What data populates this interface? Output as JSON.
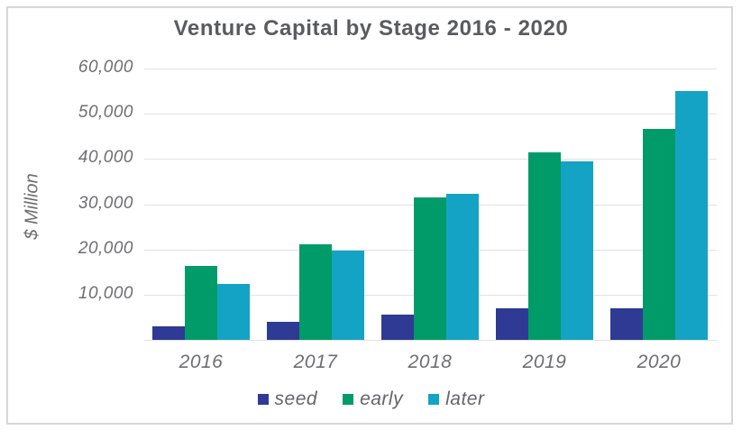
{
  "title": "Venture Capital by Stage 2016 - 2020",
  "y_axis": {
    "label": "$ Million",
    "ticks": [
      "60,000",
      "50,000",
      "40,000",
      "30,000",
      "20,000",
      "10,000"
    ]
  },
  "x_axis": {
    "ticks": [
      "2016",
      "2017",
      "2018",
      "2019",
      "2020"
    ]
  },
  "legend": {
    "items": [
      {
        "label": "seed",
        "color": "#2e3a94"
      },
      {
        "label": "early",
        "color": "#009b68"
      },
      {
        "label": "later",
        "color": "#14a3c4"
      }
    ]
  },
  "colors": {
    "seed": "#2e3a94",
    "early": "#009b68",
    "later": "#14a3c4",
    "title_text": "#595b5e",
    "tick_text": "#6d6e71",
    "gridline": "#e2e2e2",
    "frame_border": "#d6d7d8"
  },
  "chart_data": {
    "type": "bar",
    "title": "Venture Capital by Stage 2016 - 2020",
    "categories": [
      "2016",
      "2017",
      "2018",
      "2019",
      "2020"
    ],
    "series": [
      {
        "name": "seed",
        "color": "#2e3a94",
        "values": [
          3000,
          4000,
          5600,
          6900,
          7000
        ]
      },
      {
        "name": "early",
        "color": "#009b68",
        "values": [
          16300,
          21200,
          31400,
          41400,
          46700
        ]
      },
      {
        "name": "later",
        "color": "#14a3c4",
        "values": [
          12300,
          19700,
          32200,
          39400,
          55000
        ]
      }
    ],
    "xlabel": "",
    "ylabel": "$ Million",
    "ylim": [
      0,
      60000
    ],
    "grid": true,
    "legend_position": "bottom"
  }
}
